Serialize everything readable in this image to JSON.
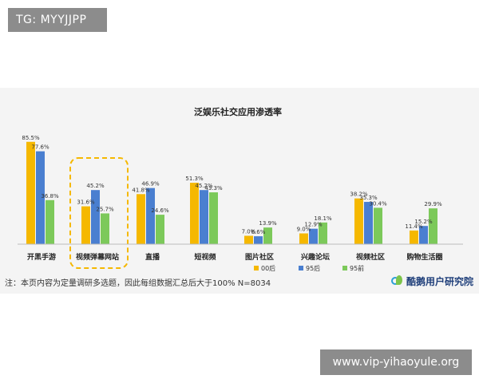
{
  "overlay": {
    "top_left_tag": "TG: MYYJJPP",
    "bottom_right_url": "www.vip-yihaoyule.org"
  },
  "figure": {
    "footnote": "注：本页内容为定量调研多选题，因此每组数据汇总后大于100%  N=8034",
    "brand": "酷鹅用户研究院"
  },
  "colors": {
    "series_00": "#f5b800",
    "series_95": "#4a7fd0",
    "series_pre95": "#7cc95a",
    "highlight_dash": "#f5b800"
  },
  "chart_data": {
    "type": "bar",
    "title": "泛娱乐社交应用渗透率",
    "categories": [
      "开黑手游",
      "视频弹幕网站",
      "直播",
      "短视频",
      "图片社区",
      "兴趣论坛",
      "视频社区",
      "购物生活圈"
    ],
    "series": [
      {
        "name": "00后",
        "values": [
          85.5,
          31.6,
          41.8,
          51.3,
          7.0,
          9.0,
          38.2,
          11.4
        ],
        "labels": [
          "85.5%",
          "31.6%",
          "41.8%",
          "51.3%",
          "7.0%",
          "9.0%",
          "38.2%",
          "11.4%"
        ]
      },
      {
        "name": "95后",
        "values": [
          77.6,
          45.2,
          46.9,
          45.2,
          6.6,
          12.9,
          35.3,
          15.2
        ],
        "labels": [
          "77.6%",
          "45.2%",
          "46.9%",
          "45.2%",
          "6.6%",
          "12.9%",
          "35.3%",
          "15.2%"
        ]
      },
      {
        "name": "95前",
        "values": [
          36.8,
          25.7,
          24.6,
          43.3,
          13.9,
          18.1,
          30.4,
          29.9
        ],
        "labels": [
          "36.8%",
          "25.7%",
          "24.6%",
          "43.3%",
          "13.9%",
          "18.1%",
          "30.4%",
          "29.9%"
        ]
      }
    ],
    "highlighted_category": "视频弹幕网站",
    "ylim": [
      0,
      100
    ],
    "grid": false,
    "legend": "bottom-right",
    "xlabel": "",
    "ylabel": ""
  }
}
